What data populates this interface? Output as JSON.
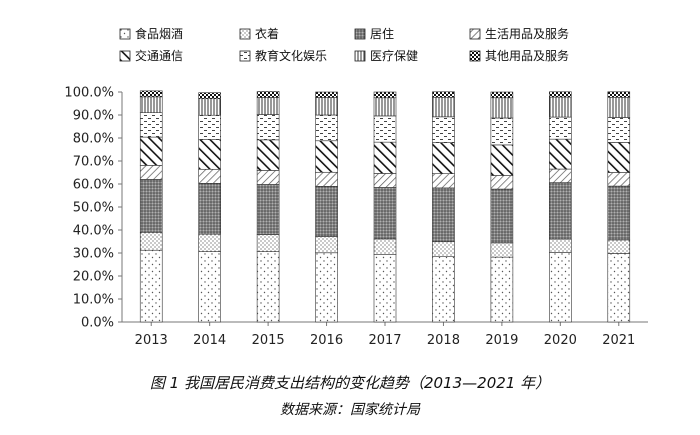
{
  "chart_data": {
    "type": "bar",
    "stacked": true,
    "percent": true,
    "categories": [
      "2013",
      "2014",
      "2015",
      "2016",
      "2017",
      "2018",
      "2019",
      "2020",
      "2021"
    ],
    "ylim": [
      0,
      100
    ],
    "y_ticks": [
      "0.0%",
      "10.0%",
      "20.0%",
      "30.0%",
      "40.0%",
      "50.0%",
      "60.0%",
      "70.0%",
      "80.0%",
      "90.0%",
      "100.0%"
    ],
    "legend_position": "top",
    "series": [
      {
        "name": "食品烟酒",
        "pattern": "dots",
        "values": [
          31.2,
          30.6,
          30.6,
          30.1,
          29.3,
          28.4,
          28.2,
          30.2,
          29.8
        ]
      },
      {
        "name": "衣着",
        "pattern": "fine-dots",
        "values": [
          7.8,
          7.6,
          7.4,
          7.0,
          6.8,
          6.5,
          6.2,
          5.8,
          5.9
        ]
      },
      {
        "name": "居住",
        "pattern": "dense-dots",
        "values": [
          23.0,
          22.1,
          21.8,
          21.9,
          22.4,
          23.4,
          23.4,
          24.6,
          23.4
        ]
      },
      {
        "name": "生活用品及服务",
        "pattern": "diagonal-light",
        "values": [
          6.1,
          6.1,
          6.1,
          6.1,
          6.1,
          6.2,
          5.9,
          5.9,
          5.9
        ]
      },
      {
        "name": "交通通信",
        "pattern": "diagonal-heavy",
        "values": [
          12.3,
          12.9,
          13.3,
          13.7,
          13.6,
          13.5,
          13.3,
          13.0,
          13.1
        ]
      },
      {
        "name": "教育文化娱乐",
        "pattern": "dashes",
        "values": [
          10.6,
          10.6,
          11.0,
          11.2,
          11.4,
          11.2,
          11.7,
          9.6,
          10.8
        ]
      },
      {
        "name": "医疗保健",
        "pattern": "vertical",
        "values": [
          6.9,
          7.2,
          7.4,
          7.6,
          7.9,
          8.5,
          8.8,
          8.7,
          8.8
        ]
      },
      {
        "name": "其他用品及服务",
        "pattern": "checker",
        "values": [
          2.6,
          2.6,
          2.6,
          2.4,
          2.5,
          2.4,
          2.5,
          2.3,
          2.4
        ]
      }
    ],
    "title": "图 1 我国居民消费支出结构的变化趋势（2013—2021 年）",
    "subtitle": "数据来源：国家统计局"
  },
  "caption": {
    "title": "图 1 我国居民消费支出结构的变化趋势（2013—2021 年）",
    "source": "数据来源：国家统计局"
  }
}
